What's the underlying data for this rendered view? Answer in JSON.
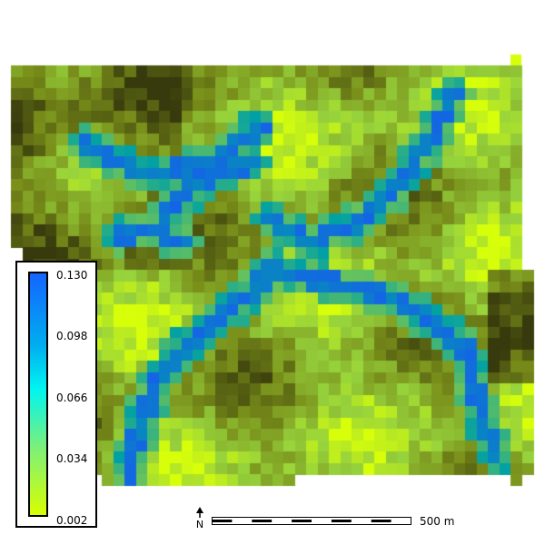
{
  "legend": {
    "ticks": [
      "0.130",
      "0.098",
      "0.066",
      "0.034",
      "0.002"
    ],
    "min": 0.002,
    "max": 0.13,
    "colormap": [
      "#1565ff",
      "#00aef0",
      "#00f5f0",
      "#7cf07a",
      "#d8ff00"
    ]
  },
  "scale_bar": {
    "label": "500 m"
  },
  "north_arrow": {
    "label": "N"
  },
  "colors": {
    "dark_olive": "#3e3a0e",
    "olive": "#7a8a1a",
    "yellow": "#d8ff00",
    "teal": "#0d9aa0",
    "blue": "#1565ff"
  }
}
